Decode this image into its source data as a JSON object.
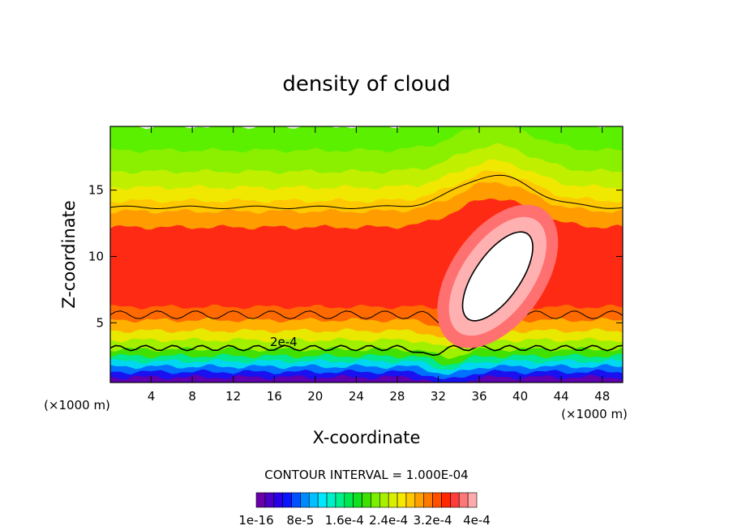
{
  "chart_data": {
    "type": "heatmap",
    "title": "density of cloud",
    "xlabel": "X-coordinate",
    "ylabel": "Z-coordinate",
    "x_unit_label": "(×1000 m)",
    "x_unit_label_right": "(×1000 m)",
    "xlim": [
      0,
      50
    ],
    "ylim": [
      0.5,
      19.8
    ],
    "x_ticks": [
      "4",
      "8",
      "12",
      "16",
      "20",
      "24",
      "28",
      "32",
      "36",
      "40",
      "44",
      "48"
    ],
    "x_tick_values": [
      4,
      8,
      12,
      16,
      20,
      24,
      28,
      32,
      36,
      40,
      44,
      48
    ],
    "y_ticks": [
      "5",
      "10",
      "15"
    ],
    "y_tick_values": [
      5,
      10,
      15
    ],
    "contour_interval_text": "CONTOUR INTERVAL = 1.000E-04",
    "contour_label": "2e-4",
    "colorbar": {
      "labels": [
        "1e-16",
        "8e-5",
        "1.6e-4",
        "2.4e-4",
        "3.2e-4",
        "4e-4"
      ],
      "colors": [
        "#6a00a8",
        "#4b00c8",
        "#2800e6",
        "#0a14ff",
        "#0050ff",
        "#0088ff",
        "#00c0ff",
        "#00e8ff",
        "#00f0c8",
        "#00f08c",
        "#00e850",
        "#10e020",
        "#40e000",
        "#78f000",
        "#a8f000",
        "#d8f000",
        "#f8e800",
        "#ffc800",
        "#ffa000",
        "#ff7800",
        "#ff5000",
        "#ff2800",
        "#ff3c3c",
        "#ff7878",
        "#ffaaaa"
      ]
    },
    "bands": [
      {
        "z_top": 19.8,
        "z_bottom": 18.0,
        "color": "#5af000"
      },
      {
        "z_top": 18.0,
        "z_bottom": 16.4,
        "color": "#8af000"
      },
      {
        "z_top": 16.4,
        "z_bottom": 15.2,
        "color": "#c0f000"
      },
      {
        "z_top": 15.2,
        "z_bottom": 14.2,
        "color": "#f0e800"
      },
      {
        "z_top": 14.2,
        "z_bottom": 13.4,
        "color": "#ffc800"
      },
      {
        "z_top": 13.4,
        "z_bottom": 12.2,
        "color": "#ff9c00"
      },
      {
        "z_top": 12.2,
        "z_bottom": 6.2,
        "color": "#ff2a14"
      },
      {
        "z_top": 6.2,
        "z_bottom": 5.2,
        "color": "#ff6a00"
      },
      {
        "z_top": 5.2,
        "z_bottom": 4.4,
        "color": "#ffb000"
      },
      {
        "z_top": 4.4,
        "z_bottom": 3.7,
        "color": "#e8e800"
      },
      {
        "z_top": 3.7,
        "z_bottom": 3.0,
        "color": "#a0f000"
      },
      {
        "z_top": 3.0,
        "z_bottom": 2.5,
        "color": "#40e000"
      },
      {
        "z_top": 2.5,
        "z_bottom": 2.1,
        "color": "#00e890"
      },
      {
        "z_top": 2.1,
        "z_bottom": 1.7,
        "color": "#00d8f0"
      },
      {
        "z_top": 1.7,
        "z_bottom": 1.3,
        "color": "#0070ff"
      },
      {
        "z_top": 1.3,
        "z_bottom": 0.9,
        "color": "#1a10f0"
      },
      {
        "z_top": 0.9,
        "z_bottom": 0.5,
        "color": "#6000b0"
      }
    ],
    "updraft_core": {
      "x": 37.8,
      "z": 8.5,
      "colors": [
        "#ff7070",
        "#ffb0b0",
        "#ffffff"
      ]
    }
  }
}
